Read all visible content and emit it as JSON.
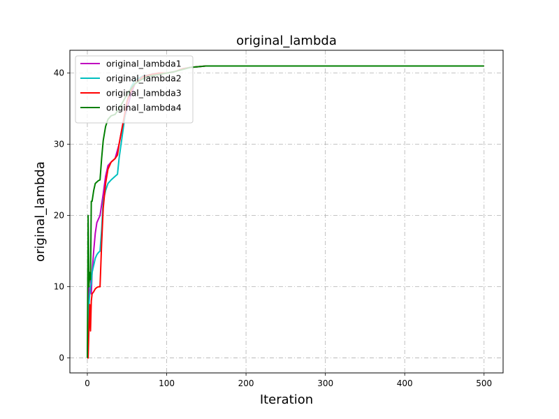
{
  "chart_data": {
    "type": "line",
    "title": "original_lambda",
    "xlabel": "Iteration",
    "ylabel": "original_lambda",
    "xlim": [
      -22,
      524
    ],
    "ylim": [
      -2.1,
      43.2
    ],
    "xticks": [
      0,
      100,
      200,
      300,
      400,
      500
    ],
    "yticks": [
      0,
      10,
      20,
      30,
      40
    ],
    "grid": true,
    "grid_style": "dashdot",
    "legend_position": "top-left",
    "series": [
      {
        "name": "original_lambda1",
        "color": "#bf00bf",
        "x": [
          0,
          1,
          2,
          3,
          4,
          5,
          6,
          8,
          10,
          12,
          14,
          16,
          18,
          20,
          23,
          26,
          30,
          35,
          40,
          45,
          50,
          55,
          60,
          70,
          80,
          90,
          100,
          110,
          120,
          130,
          140,
          150,
          175,
          200,
          250,
          300,
          400,
          500
        ],
        "y": [
          0,
          5,
          10,
          12,
          12,
          9,
          12,
          15,
          17.5,
          19,
          19.5,
          20,
          21.5,
          23,
          25.5,
          27,
          27.5,
          28,
          30,
          33,
          35,
          37,
          38.5,
          39.5,
          39.8,
          40,
          40,
          40.2,
          40.6,
          40.8,
          40.9,
          41,
          41,
          41,
          41,
          41,
          41,
          41
        ]
      },
      {
        "name": "original_lambda2",
        "color": "#00bfbf",
        "x": [
          0,
          1,
          2,
          3,
          4,
          5,
          6,
          8,
          10,
          12,
          14,
          16,
          18,
          20,
          23,
          26,
          30,
          35,
          38,
          40,
          45,
          50,
          55,
          60,
          70,
          80,
          90,
          100,
          110,
          120,
          130,
          140,
          150,
          175,
          200,
          250,
          300,
          400,
          500
        ],
        "y": [
          0,
          5,
          7.5,
          9,
          10,
          10.5,
          12,
          13,
          14,
          14.5,
          14.8,
          15,
          18,
          22,
          23.5,
          24.5,
          25,
          25.5,
          25.8,
          28,
          32,
          36,
          38,
          39,
          39.6,
          39.8,
          40,
          40,
          40.2,
          40.6,
          40.8,
          40.9,
          41,
          41,
          41,
          41,
          41,
          41,
          41
        ]
      },
      {
        "name": "original_lambda3",
        "color": "#ff0000",
        "x": [
          0,
          1,
          2,
          3,
          4,
          5,
          6,
          8,
          10,
          12,
          14,
          16,
          18,
          20,
          23,
          26,
          30,
          35,
          38,
          40,
          45,
          50,
          55,
          60,
          70,
          80,
          90,
          100,
          110,
          120,
          130,
          140,
          150,
          175,
          200,
          250,
          300,
          400,
          500
        ],
        "y": [
          0,
          0,
          4,
          7.5,
          3.8,
          8,
          9,
          9.3,
          9.7,
          9.9,
          10,
          10,
          16,
          21,
          24.5,
          26.5,
          27.5,
          28,
          28.5,
          30,
          33,
          36,
          37.5,
          38.5,
          39.5,
          39.8,
          40,
          40,
          40.2,
          40.6,
          40.8,
          40.9,
          41,
          41,
          41,
          41,
          41,
          41,
          41
        ]
      },
      {
        "name": "original_lambda4",
        "color": "#007f00",
        "x": [
          0,
          1,
          2,
          3,
          4,
          5,
          6,
          8,
          10,
          12,
          14,
          16,
          18,
          20,
          23,
          26,
          30,
          35,
          40,
          45,
          50,
          55,
          60,
          70,
          80,
          90,
          100,
          110,
          120,
          130,
          140,
          150,
          175,
          200,
          250,
          300,
          400,
          500
        ],
        "y": [
          0,
          20,
          10,
          12,
          11,
          22,
          22,
          23.5,
          24.5,
          24.7,
          24.9,
          25,
          28,
          30.5,
          32.5,
          33.5,
          34,
          34.2,
          35,
          36,
          37,
          37.8,
          38.5,
          39.2,
          39.6,
          39.8,
          40,
          40.2,
          40.5,
          40.8,
          40.9,
          41,
          41,
          41,
          41,
          41,
          41,
          41
        ]
      }
    ]
  }
}
